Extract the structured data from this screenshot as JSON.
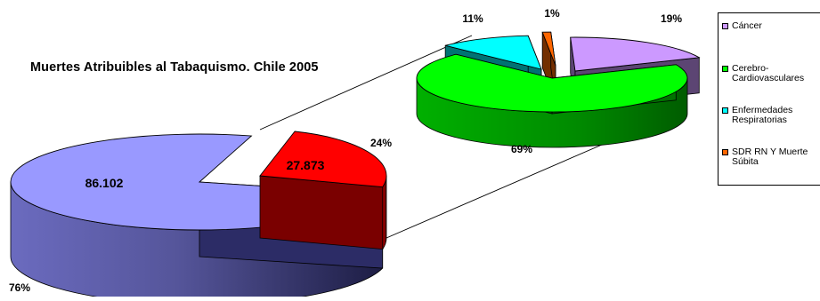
{
  "title": "Muertes Atribuibles al Tabaquismo. Chile 2005",
  "chart_data": [
    {
      "type": "pie",
      "categories": [
        "",
        ""
      ],
      "values": [
        86102,
        27873
      ],
      "value_labels": [
        "86.102",
        "27.873"
      ],
      "percent_labels": [
        "76%",
        "24%"
      ],
      "colors": [
        "#9999ff",
        "#ff0000"
      ]
    },
    {
      "type": "pie",
      "categories": [
        "Cáncer",
        "Cerebro-Cardiovasculares",
        "Enfermedades Respiratorias",
        "SDR RN Y Muerte Súbita"
      ],
      "percent_labels": [
        "19%",
        "69%",
        "11%",
        "1%"
      ],
      "values": [
        19,
        69,
        11,
        1
      ],
      "colors": [
        "#cc99ff",
        "#00ff00",
        "#00ffff",
        "#ff6600"
      ]
    }
  ],
  "legend": {
    "items": [
      {
        "label": "Cáncer",
        "color": "#cc99ff"
      },
      {
        "label": "Cerebro-Cardiovasculares",
        "color": "#00ff00"
      },
      {
        "label": "Enfermedades Respiratorias",
        "color": "#00ffff"
      },
      {
        "label": "SDR RN Y Muerte Súbita",
        "color": "#ff6600"
      }
    ]
  }
}
